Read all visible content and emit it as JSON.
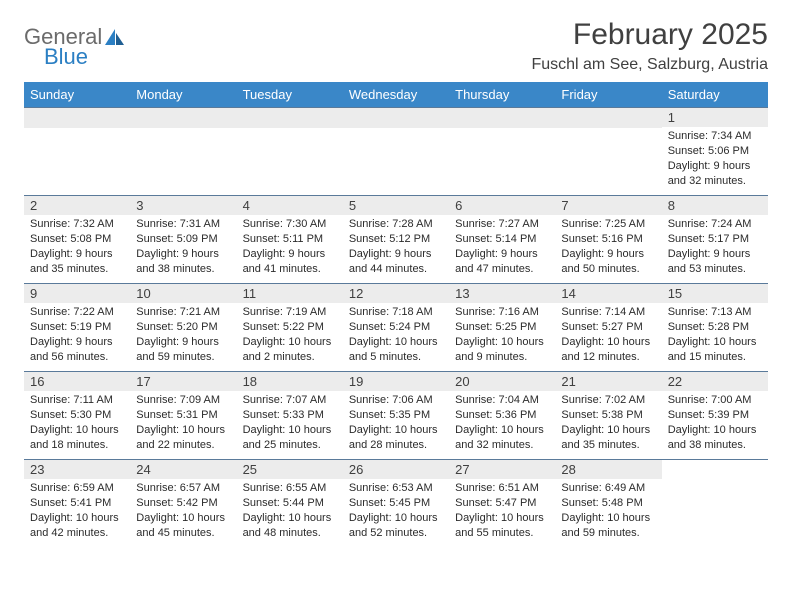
{
  "logo": {
    "word1": "General",
    "word2": "Blue"
  },
  "title": "February 2025",
  "location": "Fuschl am See, Salzburg, Austria",
  "colors": {
    "header_bg": "#3a87c8",
    "header_text": "#ffffff",
    "daynum_bg": "#ececec",
    "border": "#5a7a9a",
    "text": "#2b2b2b",
    "title_text": "#404040",
    "logo_gray": "#6b6b6b",
    "logo_blue": "#2b7fc3"
  },
  "weekdays": [
    "Sunday",
    "Monday",
    "Tuesday",
    "Wednesday",
    "Thursday",
    "Friday",
    "Saturday"
  ],
  "weeks": [
    [
      null,
      null,
      null,
      null,
      null,
      null,
      {
        "n": "1",
        "sr": "7:34 AM",
        "ss": "5:06 PM",
        "dl": "9 hours and 32 minutes."
      }
    ],
    [
      {
        "n": "2",
        "sr": "7:32 AM",
        "ss": "5:08 PM",
        "dl": "9 hours and 35 minutes."
      },
      {
        "n": "3",
        "sr": "7:31 AM",
        "ss": "5:09 PM",
        "dl": "9 hours and 38 minutes."
      },
      {
        "n": "4",
        "sr": "7:30 AM",
        "ss": "5:11 PM",
        "dl": "9 hours and 41 minutes."
      },
      {
        "n": "5",
        "sr": "7:28 AM",
        "ss": "5:12 PM",
        "dl": "9 hours and 44 minutes."
      },
      {
        "n": "6",
        "sr": "7:27 AM",
        "ss": "5:14 PM",
        "dl": "9 hours and 47 minutes."
      },
      {
        "n": "7",
        "sr": "7:25 AM",
        "ss": "5:16 PM",
        "dl": "9 hours and 50 minutes."
      },
      {
        "n": "8",
        "sr": "7:24 AM",
        "ss": "5:17 PM",
        "dl": "9 hours and 53 minutes."
      }
    ],
    [
      {
        "n": "9",
        "sr": "7:22 AM",
        "ss": "5:19 PM",
        "dl": "9 hours and 56 minutes."
      },
      {
        "n": "10",
        "sr": "7:21 AM",
        "ss": "5:20 PM",
        "dl": "9 hours and 59 minutes."
      },
      {
        "n": "11",
        "sr": "7:19 AM",
        "ss": "5:22 PM",
        "dl": "10 hours and 2 minutes."
      },
      {
        "n": "12",
        "sr": "7:18 AM",
        "ss": "5:24 PM",
        "dl": "10 hours and 5 minutes."
      },
      {
        "n": "13",
        "sr": "7:16 AM",
        "ss": "5:25 PM",
        "dl": "10 hours and 9 minutes."
      },
      {
        "n": "14",
        "sr": "7:14 AM",
        "ss": "5:27 PM",
        "dl": "10 hours and 12 minutes."
      },
      {
        "n": "15",
        "sr": "7:13 AM",
        "ss": "5:28 PM",
        "dl": "10 hours and 15 minutes."
      }
    ],
    [
      {
        "n": "16",
        "sr": "7:11 AM",
        "ss": "5:30 PM",
        "dl": "10 hours and 18 minutes."
      },
      {
        "n": "17",
        "sr": "7:09 AM",
        "ss": "5:31 PM",
        "dl": "10 hours and 22 minutes."
      },
      {
        "n": "18",
        "sr": "7:07 AM",
        "ss": "5:33 PM",
        "dl": "10 hours and 25 minutes."
      },
      {
        "n": "19",
        "sr": "7:06 AM",
        "ss": "5:35 PM",
        "dl": "10 hours and 28 minutes."
      },
      {
        "n": "20",
        "sr": "7:04 AM",
        "ss": "5:36 PM",
        "dl": "10 hours and 32 minutes."
      },
      {
        "n": "21",
        "sr": "7:02 AM",
        "ss": "5:38 PM",
        "dl": "10 hours and 35 minutes."
      },
      {
        "n": "22",
        "sr": "7:00 AM",
        "ss": "5:39 PM",
        "dl": "10 hours and 38 minutes."
      }
    ],
    [
      {
        "n": "23",
        "sr": "6:59 AM",
        "ss": "5:41 PM",
        "dl": "10 hours and 42 minutes."
      },
      {
        "n": "24",
        "sr": "6:57 AM",
        "ss": "5:42 PM",
        "dl": "10 hours and 45 minutes."
      },
      {
        "n": "25",
        "sr": "6:55 AM",
        "ss": "5:44 PM",
        "dl": "10 hours and 48 minutes."
      },
      {
        "n": "26",
        "sr": "6:53 AM",
        "ss": "5:45 PM",
        "dl": "10 hours and 52 minutes."
      },
      {
        "n": "27",
        "sr": "6:51 AM",
        "ss": "5:47 PM",
        "dl": "10 hours and 55 minutes."
      },
      {
        "n": "28",
        "sr": "6:49 AM",
        "ss": "5:48 PM",
        "dl": "10 hours and 59 minutes."
      },
      null
    ]
  ],
  "labels": {
    "sunrise": "Sunrise:",
    "sunset": "Sunset:",
    "daylight": "Daylight:"
  }
}
